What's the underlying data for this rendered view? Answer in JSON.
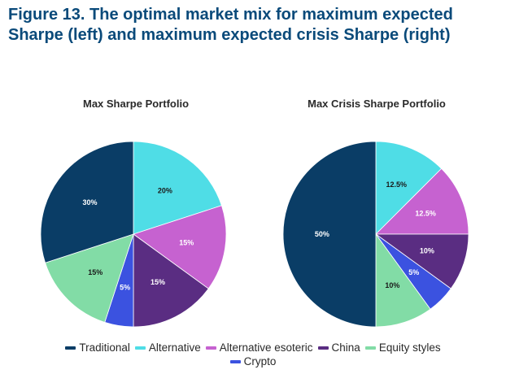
{
  "figure_title": "Figure 13. The optimal market mix for maximum expected Sharpe (left) and maximum expected crisis Sharpe (right)",
  "colors": {
    "title": "#0a4a7a",
    "Traditional": "#0a3d66",
    "Alternative": "#4fdde6",
    "Alternative esoteric": "#c662d0",
    "China": "#5a2d82",
    "Equity styles": "#82dca6",
    "Crypto": "#3b52e0"
  },
  "legend": [
    {
      "name": "Traditional",
      "color": "#0a3d66"
    },
    {
      "name": "Alternative",
      "color": "#4fdde6"
    },
    {
      "name": "Alternative esoteric",
      "color": "#c662d0"
    },
    {
      "name": "China",
      "color": "#5a2d82"
    },
    {
      "name": "Equity styles",
      "color": "#82dca6"
    },
    {
      "name": "Crypto",
      "color": "#3b52e0"
    }
  ],
  "chart_data": [
    {
      "type": "pie",
      "title": "Max Sharpe Portfolio",
      "categories": [
        "Alternative",
        "Alternative esoteric",
        "China",
        "Crypto",
        "Equity styles",
        "Traditional"
      ],
      "values": [
        20,
        15,
        15,
        5,
        15,
        30
      ],
      "labels": [
        "20%",
        "15%",
        "15%",
        "5%",
        "15%",
        "30%"
      ],
      "label_colors": [
        "#1a1a1a",
        "#ffffff",
        "#ffffff",
        "#ffffff",
        "#1a1a1a",
        "#ffffff"
      ],
      "start": "12 o'clock",
      "direction": "clockwise"
    },
    {
      "type": "pie",
      "title": "Max Crisis Sharpe Portfolio",
      "categories": [
        "Alternative",
        "Alternative esoteric",
        "China",
        "Crypto",
        "Equity styles",
        "Traditional"
      ],
      "values": [
        12.5,
        12.5,
        10,
        5,
        10,
        50
      ],
      "labels": [
        "12.5%",
        "12.5%",
        "10%",
        "5%",
        "10%",
        "50%"
      ],
      "label_colors": [
        "#1a1a1a",
        "#ffffff",
        "#ffffff",
        "#ffffff",
        "#1a1a1a",
        "#ffffff"
      ],
      "start": "12 o'clock",
      "direction": "clockwise"
    }
  ]
}
